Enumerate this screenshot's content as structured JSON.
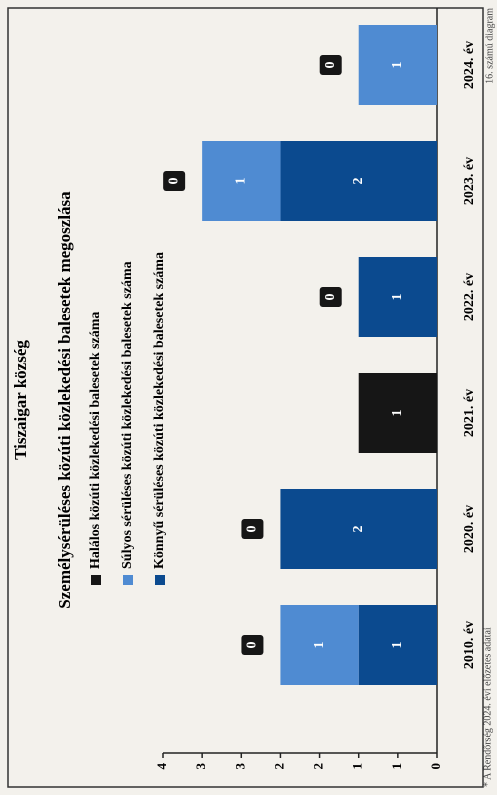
{
  "chart_data": {
    "type": "stacked-bar",
    "title": "Tiszaigar község",
    "subtitle": "Személysérüléses közúti közlekedési balesetek megoszlása",
    "categories": [
      "2010. év",
      "2020. év",
      "2021. év",
      "2022. év",
      "2023. év",
      "2024. év"
    ],
    "series": [
      {
        "name": "Könnyű sérüléses közúti közlekedési balesetek száma",
        "color": "#0b4a8f",
        "values": [
          1,
          2,
          0,
          1,
          2,
          0
        ]
      },
      {
        "name": "Súlyos sérüléses közúti közlekedési balesetek száma",
        "color": "#4f8bd2",
        "values": [
          1,
          0,
          0,
          0,
          1,
          1
        ]
      },
      {
        "name": "Halálos közúti közlekedési balesetek száma",
        "color": "#161616",
        "values": [
          0,
          0,
          1,
          0,
          0,
          0
        ]
      }
    ],
    "ylim": [
      0,
      3.5
    ],
    "yticks": [
      0,
      {
        "value": 0.5,
        "label": "1"
      },
      1,
      {
        "value": 1.5,
        "label": "2"
      },
      2,
      {
        "value": 2.5,
        "label": "3"
      },
      3,
      {
        "value": 3.5,
        "label": "4"
      }
    ],
    "footnote": "* A Rendőrség 2024. évi előzetes adatai",
    "figure_number": "16. számú diagram"
  }
}
